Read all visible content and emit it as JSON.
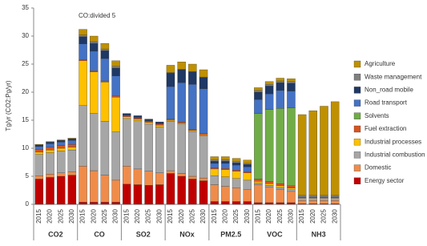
{
  "chart_data": {
    "type": "stacked-bar",
    "y_label": "Tg/yr (CO2:Pg/yr)",
    "annotation": "CO:divided 5",
    "categories": [
      "2015",
      "2020",
      "2025",
      "2030",
      "2015",
      "2020",
      "2025",
      "2030",
      "2015",
      "2020",
      "2025",
      "2030",
      "2015",
      "2020",
      "2025",
      "2030",
      "2015",
      "2020",
      "2025",
      "2030",
      "2015",
      "2020",
      "2025",
      "2030",
      "2015",
      "2020",
      "2025",
      "2030"
    ],
    "groups": [
      "CO2",
      "CO",
      "SO2",
      "NOx",
      "PM2.5",
      "VOC",
      "NH3"
    ],
    "ylim": [
      0,
      35
    ],
    "yticks": [
      0,
      5,
      10,
      15,
      20,
      25,
      30,
      35
    ],
    "grid": false,
    "series": [
      {
        "name": "Energy sector",
        "color": "#c00000",
        "values": [
          4.5,
          4.8,
          5.0,
          5.2,
          0.4,
          0.4,
          0.4,
          0.4,
          3.6,
          3.5,
          3.4,
          3.5,
          5.5,
          5.0,
          4.5,
          4.2,
          0.5,
          0.5,
          0.5,
          0.5,
          0.3,
          0.3,
          0.3,
          0.3,
          0.1,
          0.1,
          0.1,
          0.1
        ]
      },
      {
        "name": "Domestic",
        "color": "#f08c4a",
        "values": [
          0.6,
          0.6,
          0.6,
          0.6,
          6.4,
          5.6,
          4.8,
          3.9,
          3.2,
          2.8,
          2.5,
          2.1,
          0.5,
          0.5,
          0.5,
          0.5,
          3.0,
          2.7,
          2.4,
          2.1,
          3.2,
          2.8,
          2.4,
          2.0,
          0.6,
          0.6,
          0.6,
          0.6
        ]
      },
      {
        "name": "Industrial combustion",
        "color": "#a6a6a6",
        "values": [
          3.8,
          3.8,
          3.9,
          3.9,
          10.8,
          10.2,
          9.6,
          8.6,
          8.5,
          8.6,
          8.4,
          8.2,
          8.8,
          8.8,
          8.0,
          7.5,
          1.6,
          1.7,
          1.7,
          1.7,
          0.3,
          0.3,
          0.3,
          0.3,
          0.4,
          0.4,
          0.4,
          0.4
        ]
      },
      {
        "name": "Industrial processes",
        "color": "#ffc000",
        "values": [
          0.4,
          0.5,
          0.5,
          0.5,
          8.0,
          7.4,
          7.0,
          6.2,
          0.3,
          0.3,
          0.3,
          0.3,
          0.2,
          0.2,
          0.2,
          0.2,
          1.2,
          1.3,
          1.3,
          1.3,
          0.3,
          0.3,
          0.3,
          0.3,
          0.1,
          0.1,
          0.1,
          0.1
        ]
      },
      {
        "name": "Fuel extraction",
        "color": "#d9541e",
        "values": [
          0.5,
          0.5,
          0.5,
          0.5,
          0.2,
          0.2,
          0.2,
          0.2,
          0.2,
          0.2,
          0.2,
          0.2,
          0.2,
          0.2,
          0.2,
          0.2,
          0.2,
          0.2,
          0.2,
          0.2,
          0.4,
          0.4,
          0.4,
          0.4,
          0,
          0,
          0,
          0
        ]
      },
      {
        "name": "Solvents",
        "color": "#70ad47",
        "values": [
          0,
          0,
          0,
          0,
          0,
          0,
          0,
          0,
          0,
          0,
          0,
          0,
          0,
          0,
          0,
          0,
          0,
          0,
          0,
          0,
          11.7,
          12.8,
          13.4,
          13.9,
          0,
          0,
          0,
          0
        ]
      },
      {
        "name": "Road transport",
        "color": "#4472c4",
        "values": [
          0.5,
          0.6,
          0.6,
          0.7,
          2.8,
          3.5,
          4.0,
          3.6,
          0.1,
          0.1,
          0.1,
          0.1,
          5.8,
          7.0,
          8.0,
          8.0,
          0.8,
          0.9,
          0.9,
          0.9,
          2.5,
          2.8,
          3.2,
          3.0,
          0.1,
          0.1,
          0.1,
          0.1
        ]
      },
      {
        "name": "Non_road mobile",
        "color": "#1f3864",
        "values": [
          0.3,
          0.3,
          0.3,
          0.3,
          1.3,
          1.4,
          1.4,
          1.4,
          0.3,
          0.3,
          0.3,
          0.3,
          2.4,
          2.3,
          2.2,
          2.0,
          0.4,
          0.4,
          0.4,
          0.4,
          1.3,
          1.4,
          1.4,
          1.4,
          0,
          0,
          0,
          0
        ]
      },
      {
        "name": "Waste management",
        "color": "#808080",
        "values": [
          0,
          0,
          0,
          0,
          0.3,
          0.3,
          0.3,
          0.3,
          0,
          0,
          0,
          0,
          0.1,
          0.1,
          0.1,
          0.1,
          0.2,
          0.2,
          0.2,
          0.2,
          0.3,
          0.3,
          0.3,
          0.3,
          0.3,
          0.3,
          0.3,
          0.3
        ]
      },
      {
        "name": "Agriculture",
        "color": "#bf9000",
        "values": [
          0.1,
          0.1,
          0.1,
          0.1,
          1.0,
          1.0,
          1.0,
          1.0,
          0,
          0,
          0,
          0,
          1.3,
          1.3,
          1.3,
          1.3,
          0.6,
          0.6,
          0.6,
          0.6,
          0.5,
          0.5,
          0.5,
          0.5,
          14.4,
          15.1,
          15.9,
          16.7
        ]
      }
    ]
  }
}
